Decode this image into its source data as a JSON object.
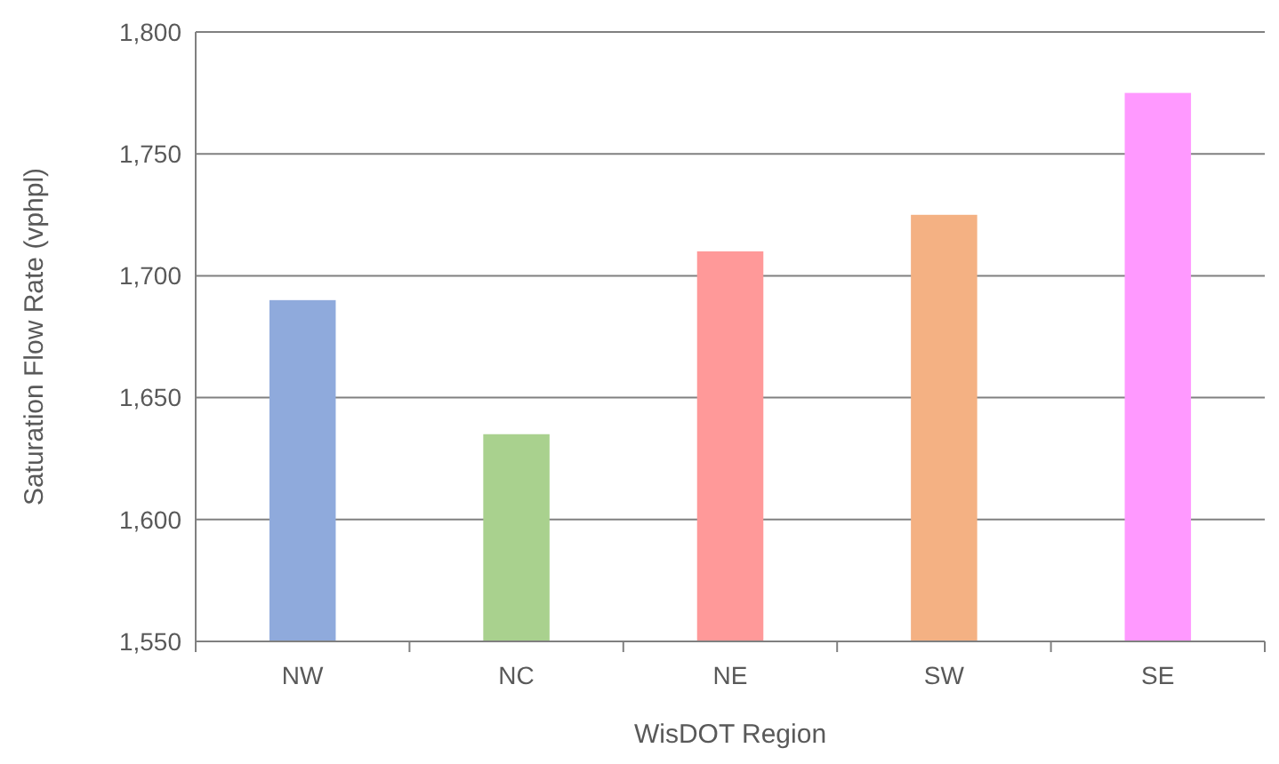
{
  "chart_data": {
    "type": "bar",
    "xlabel": "WisDOT Region",
    "ylabel": "Saturation Flow Rate (vphpl)",
    "categories": [
      "NW",
      "NC",
      "NE",
      "SW",
      "SE"
    ],
    "values": [
      1690,
      1635,
      1710,
      1725,
      1775
    ],
    "colors": [
      "#8faadc",
      "#a9d18e",
      "#ff9999",
      "#f4b183",
      "#ff99ff"
    ],
    "ylim": [
      1550,
      1800
    ],
    "yticks": [
      {
        "value": 1550,
        "label": "1,550"
      },
      {
        "value": 1600,
        "label": "1,600"
      },
      {
        "value": 1650,
        "label": "1,650"
      },
      {
        "value": 1700,
        "label": "1,700"
      },
      {
        "value": 1750,
        "label": "1,750"
      },
      {
        "value": 1800,
        "label": "1,800"
      }
    ],
    "grid": "y"
  }
}
